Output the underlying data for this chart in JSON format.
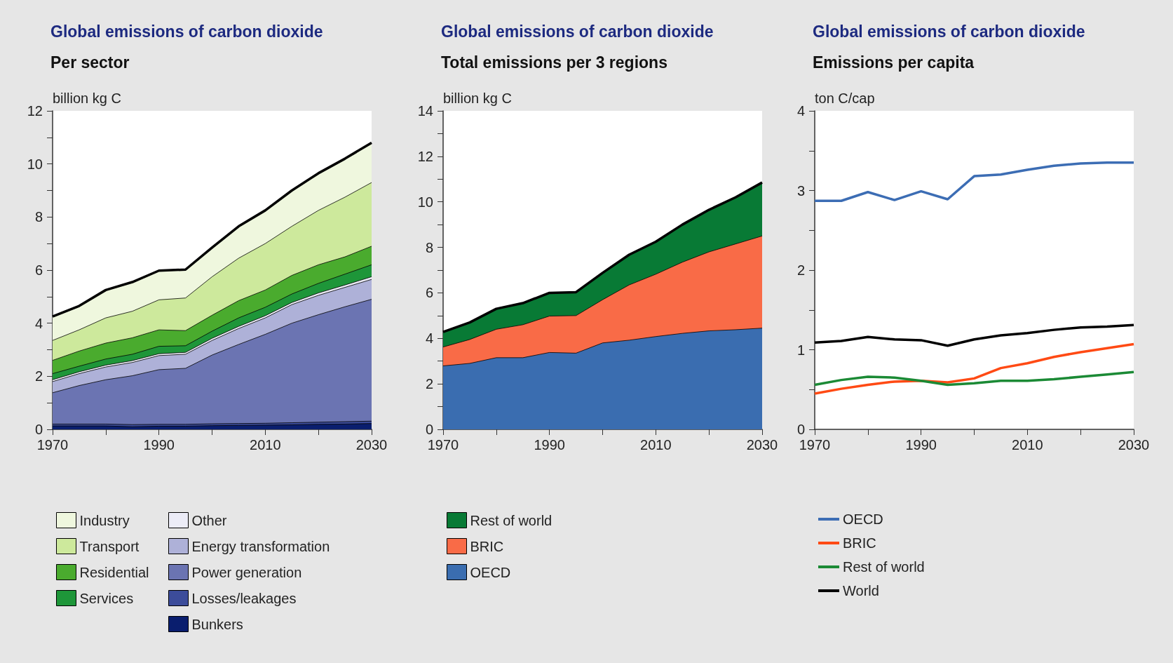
{
  "chart_data": [
    {
      "type": "area",
      "stacked": true,
      "title": "Global emissions of carbon dioxide",
      "subtitle": "Per sector",
      "ylabel": "billion kg C",
      "x": [
        1970,
        1975,
        1980,
        1985,
        1990,
        1995,
        2000,
        2005,
        2010,
        2015,
        2020,
        2025,
        2030
      ],
      "xlim": [
        1970,
        2030
      ],
      "xticks": [
        1970,
        {
          "value": 1980,
          "label": null
        },
        1990,
        {
          "value": 2000,
          "label": null
        },
        2010,
        {
          "value": 2020,
          "label": null
        },
        2030
      ],
      "ylim": [
        0,
        12
      ],
      "yticks": [
        0,
        {
          "value": 1,
          "label": null
        },
        2,
        {
          "value": 3,
          "label": null
        },
        4,
        {
          "value": 5,
          "label": null
        },
        6,
        {
          "value": 7,
          "label": null
        },
        8,
        {
          "value": 9,
          "label": null
        },
        10,
        {
          "value": 11,
          "label": null
        },
        12
      ],
      "grid": false,
      "legend": "bottom",
      "series": [
        {
          "name": "Bunkers",
          "color": "#0a1e6e",
          "values": [
            0.13,
            0.13,
            0.13,
            0.1,
            0.12,
            0.12,
            0.14,
            0.15,
            0.16,
            0.17,
            0.19,
            0.2,
            0.22
          ]
        },
        {
          "name": "Losses/leakages",
          "color": "#3c4c9a",
          "values": [
            0.07,
            0.07,
            0.07,
            0.08,
            0.07,
            0.07,
            0.07,
            0.07,
            0.07,
            0.08,
            0.08,
            0.09,
            0.09
          ]
        },
        {
          "name": "Power generation",
          "color": "#6b74b2",
          "values": [
            1.18,
            1.45,
            1.67,
            1.84,
            2.06,
            2.11,
            2.59,
            2.98,
            3.35,
            3.75,
            4.05,
            4.33,
            4.59
          ]
        },
        {
          "name": "Energy transformation",
          "color": "#aeb1d8",
          "values": [
            0.42,
            0.45,
            0.48,
            0.5,
            0.53,
            0.53,
            0.55,
            0.6,
            0.62,
            0.7,
            0.73,
            0.73,
            0.75
          ]
        },
        {
          "name": "Other",
          "color": "#ececf7",
          "values": [
            0.07,
            0.07,
            0.07,
            0.07,
            0.07,
            0.07,
            0.08,
            0.08,
            0.08,
            0.08,
            0.09,
            0.09,
            0.1
          ]
        },
        {
          "name": "Services",
          "color": "#1e9639",
          "values": [
            0.23,
            0.21,
            0.23,
            0.24,
            0.28,
            0.25,
            0.27,
            0.32,
            0.32,
            0.32,
            0.36,
            0.41,
            0.45
          ]
        },
        {
          "name": "Residential",
          "color": "#4aab2e",
          "values": [
            0.5,
            0.57,
            0.6,
            0.62,
            0.62,
            0.57,
            0.6,
            0.65,
            0.65,
            0.7,
            0.7,
            0.65,
            0.7
          ]
        },
        {
          "name": "Transport",
          "color": "#cde99c",
          "values": [
            0.75,
            0.8,
            0.95,
            1.0,
            1.13,
            1.23,
            1.45,
            1.6,
            1.75,
            1.85,
            2.05,
            2.25,
            2.4
          ]
        },
        {
          "name": "Industry",
          "color": "#eff7de",
          "values": [
            0.9,
            0.9,
            1.05,
            1.1,
            1.1,
            1.07,
            1.1,
            1.2,
            1.25,
            1.35,
            1.4,
            1.45,
            1.5
          ]
        }
      ]
    },
    {
      "type": "area",
      "stacked": true,
      "title": "Global emissions of carbon dioxide",
      "subtitle": "Total emissions per 3 regions",
      "ylabel": "billion kg C",
      "x": [
        1970,
        1975,
        1980,
        1985,
        1990,
        1995,
        2000,
        2005,
        2010,
        2015,
        2020,
        2025,
        2030
      ],
      "xlim": [
        1970,
        2030
      ],
      "xticks": [
        1970,
        {
          "value": 1980,
          "label": null
        },
        1990,
        {
          "value": 2000,
          "label": null
        },
        2010,
        {
          "value": 2020,
          "label": null
        },
        2030
      ],
      "ylim": [
        0,
        14
      ],
      "yticks": [
        0,
        {
          "value": 1,
          "label": null
        },
        2,
        {
          "value": 3,
          "label": null
        },
        4,
        {
          "value": 5,
          "label": null
        },
        6,
        {
          "value": 7,
          "label": null
        },
        8,
        {
          "value": 9,
          "label": null
        },
        10,
        {
          "value": 11,
          "label": null
        },
        12,
        {
          "value": 13,
          "label": null
        },
        14
      ],
      "grid": false,
      "legend": "bottom",
      "series": [
        {
          "name": "OECD",
          "color": "#3a6db0",
          "values": [
            2.79,
            2.9,
            3.15,
            3.15,
            3.38,
            3.35,
            3.8,
            3.92,
            4.08,
            4.22,
            4.33,
            4.38,
            4.45
          ]
        },
        {
          "name": "BRIC",
          "color": "#f96b47",
          "values": [
            0.83,
            1.05,
            1.25,
            1.45,
            1.6,
            1.65,
            1.9,
            2.43,
            2.74,
            3.13,
            3.47,
            3.77,
            4.05
          ]
        },
        {
          "name": "Rest of world",
          "color": "#087a35",
          "values": [
            0.66,
            0.75,
            0.9,
            0.95,
            1.02,
            1.03,
            1.18,
            1.33,
            1.43,
            1.65,
            1.85,
            2.05,
            2.35
          ]
        }
      ]
    },
    {
      "type": "line",
      "marker": "none",
      "line_style": "solid",
      "title": "Global emissions of carbon dioxide",
      "subtitle": "Emissions per capita",
      "ylabel": "ton C/cap",
      "x": [
        1970,
        1975,
        1980,
        1985,
        1990,
        1995,
        2000,
        2005,
        2010,
        2015,
        2020,
        2025,
        2030
      ],
      "xlim": [
        1970,
        2030
      ],
      "xticks": [
        1970,
        {
          "value": 1980,
          "label": null
        },
        1990,
        {
          "value": 2000,
          "label": null
        },
        2010,
        {
          "value": 2020,
          "label": null
        },
        2030
      ],
      "ylim": [
        0,
        4
      ],
      "yticks": [
        0,
        {
          "value": 0.5,
          "label": null
        },
        1,
        {
          "value": 1.5,
          "label": null
        },
        2,
        {
          "value": 2.5,
          "label": null
        },
        3,
        {
          "value": 3.5,
          "label": null
        },
        4
      ],
      "grid": false,
      "legend": "bottom",
      "series": [
        {
          "name": "OECD",
          "color": "#3c6db4",
          "values": [
            2.87,
            2.87,
            2.98,
            2.88,
            2.99,
            2.89,
            3.18,
            3.2,
            3.26,
            3.31,
            3.34,
            3.35,
            3.35
          ]
        },
        {
          "name": "BRIC",
          "color": "#ff4a14",
          "values": [
            0.45,
            0.51,
            0.56,
            0.6,
            0.61,
            0.59,
            0.64,
            0.77,
            0.83,
            0.91,
            0.97,
            1.02,
            1.07
          ]
        },
        {
          "name": "Rest of world",
          "color": "#1b8a35",
          "values": [
            0.56,
            0.62,
            0.66,
            0.65,
            0.61,
            0.56,
            0.58,
            0.61,
            0.61,
            0.63,
            0.66,
            0.69,
            0.72
          ]
        },
        {
          "name": "World",
          "color": "#000000",
          "values": [
            1.09,
            1.11,
            1.16,
            1.13,
            1.12,
            1.05,
            1.13,
            1.18,
            1.21,
            1.25,
            1.28,
            1.29,
            1.31
          ]
        }
      ]
    }
  ]
}
